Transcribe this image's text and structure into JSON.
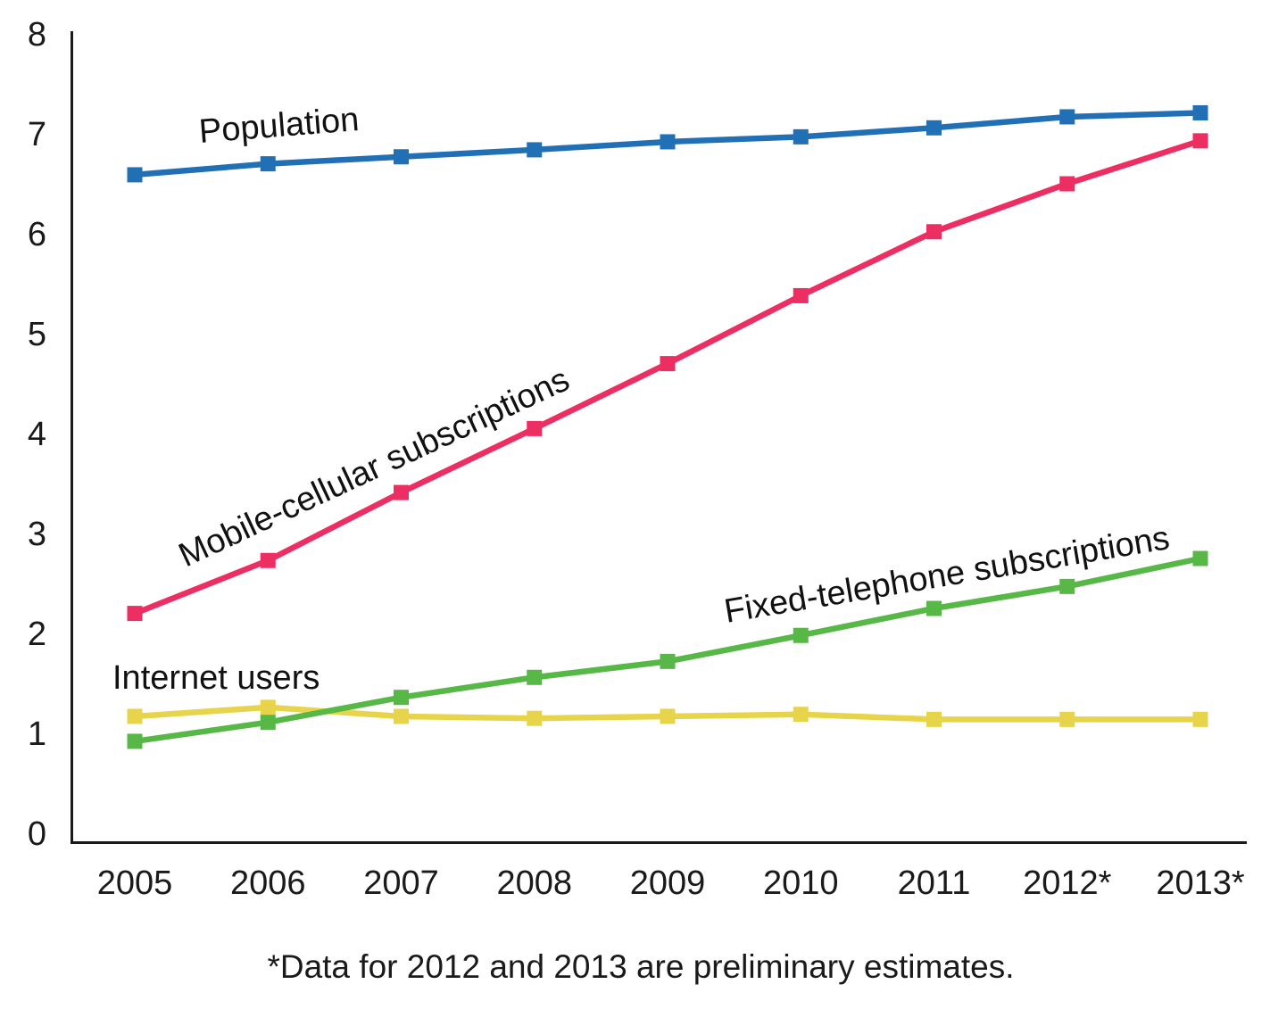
{
  "chart_data": {
    "type": "line",
    "categories": [
      "2005",
      "2006",
      "2007",
      "2008",
      "2009",
      "2010",
      "2011",
      "2012*",
      "2013*"
    ],
    "series": [
      {
        "name": "Population",
        "color": "#2170B5",
        "marker": "square",
        "values": [
          6.59,
          6.7,
          6.77,
          6.84,
          6.92,
          6.97,
          7.06,
          7.17,
          7.21
        ]
      },
      {
        "name": "Mobile-cellular subscriptions",
        "color": "#EC2E62",
        "marker": "square",
        "values": [
          2.2,
          2.73,
          3.41,
          4.05,
          4.7,
          5.38,
          6.02,
          6.5,
          6.93
        ]
      },
      {
        "name": "Fixed-telephone subscriptions",
        "color": "#57B847",
        "marker": "square",
        "values": [
          0.92,
          1.11,
          1.36,
          1.56,
          1.72,
          1.98,
          2.25,
          2.47,
          2.75
        ]
      },
      {
        "name": "Internet users",
        "color": "#E7D44A",
        "marker": "square",
        "values": [
          1.17,
          1.26,
          1.17,
          1.15,
          1.17,
          1.19,
          1.14,
          1.14,
          1.14
        ]
      }
    ],
    "yticks": [
      0,
      1,
      2,
      3,
      4,
      5,
      6,
      7,
      8
    ],
    "ylim": [
      0,
      8
    ],
    "grid": false,
    "legend_position": "inline-labels",
    "footnote": "*Data for 2012 and 2013 are preliminary estimates.",
    "axis_color": "#1a1a1a"
  }
}
